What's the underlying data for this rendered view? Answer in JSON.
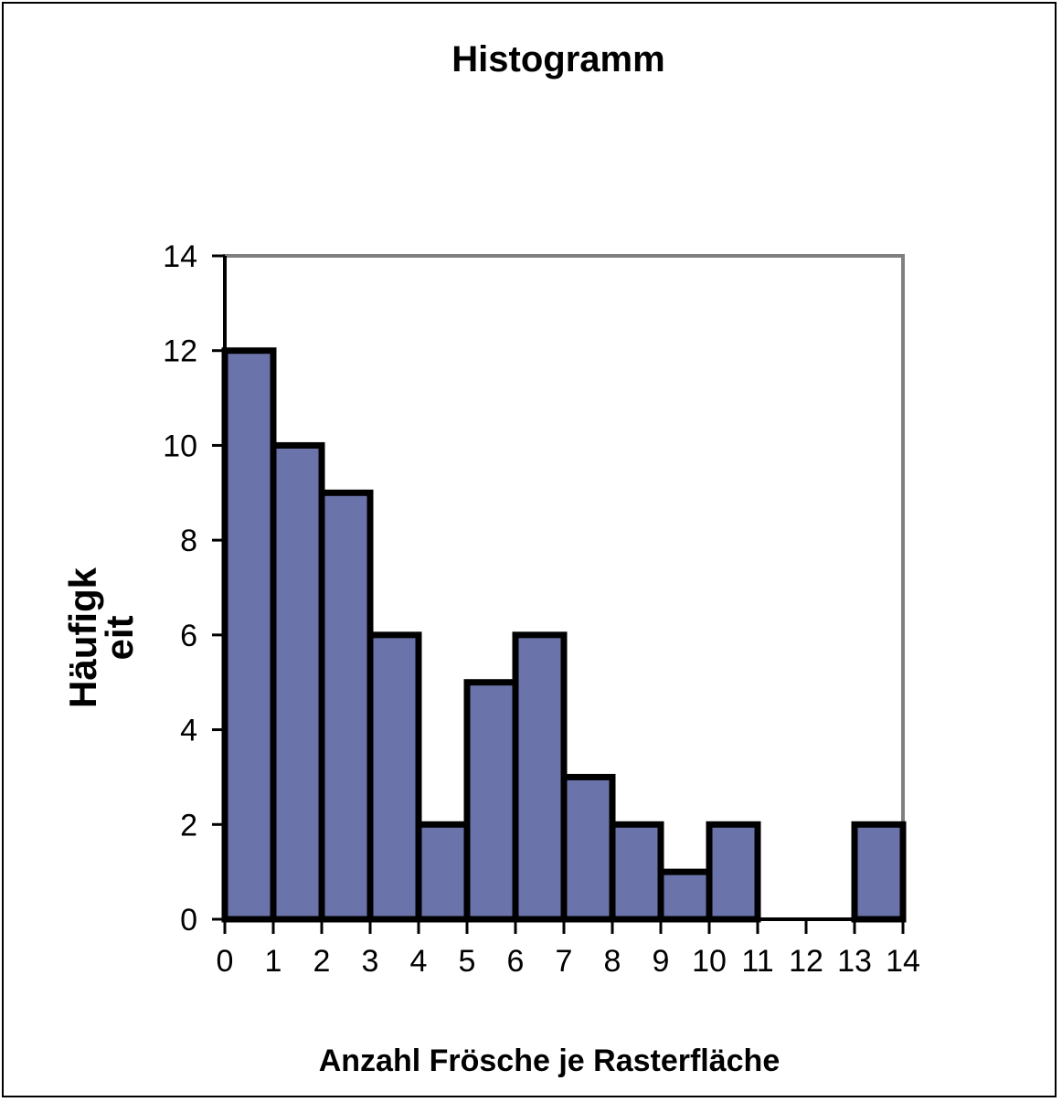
{
  "chart_data": {
    "type": "bar",
    "title": "Histogramm",
    "xlabel": "Anzahl Frösche je Rasterfläche",
    "ylabel_lines": [
      "Häufigk",
      "eit"
    ],
    "bins": [
      {
        "from": 0,
        "to": 1,
        "value": 12
      },
      {
        "from": 1,
        "to": 2,
        "value": 10
      },
      {
        "from": 2,
        "to": 3,
        "value": 9
      },
      {
        "from": 3,
        "to": 4,
        "value": 6
      },
      {
        "from": 4,
        "to": 5,
        "value": 2
      },
      {
        "from": 5,
        "to": 6,
        "value": 5
      },
      {
        "from": 6,
        "to": 7,
        "value": 6
      },
      {
        "from": 7,
        "to": 8,
        "value": 3
      },
      {
        "from": 8,
        "to": 9,
        "value": 2
      },
      {
        "from": 9,
        "to": 10,
        "value": 1
      },
      {
        "from": 10,
        "to": 11,
        "value": 2
      },
      {
        "from": 11,
        "to": 12,
        "value": 0
      },
      {
        "from": 12,
        "to": 13,
        "value": 0
      },
      {
        "from": 13,
        "to": 14,
        "value": 2
      }
    ],
    "x_ticks": [
      "0",
      "1",
      "2",
      "3",
      "4",
      "5",
      "6",
      "7",
      "8",
      "9",
      "10",
      "11",
      "12",
      "13",
      "14"
    ],
    "y_ticks": [
      "0",
      "2",
      "4",
      "6",
      "8",
      "10",
      "12",
      "14"
    ],
    "xlim": [
      0,
      14
    ],
    "ylim": [
      0,
      14
    ],
    "grid": false,
    "legend": "none",
    "colors": {
      "bar_fill": "#6b74aa",
      "bar_edge": "#000000",
      "plot_border": "#808080",
      "axis": "#000000"
    }
  }
}
